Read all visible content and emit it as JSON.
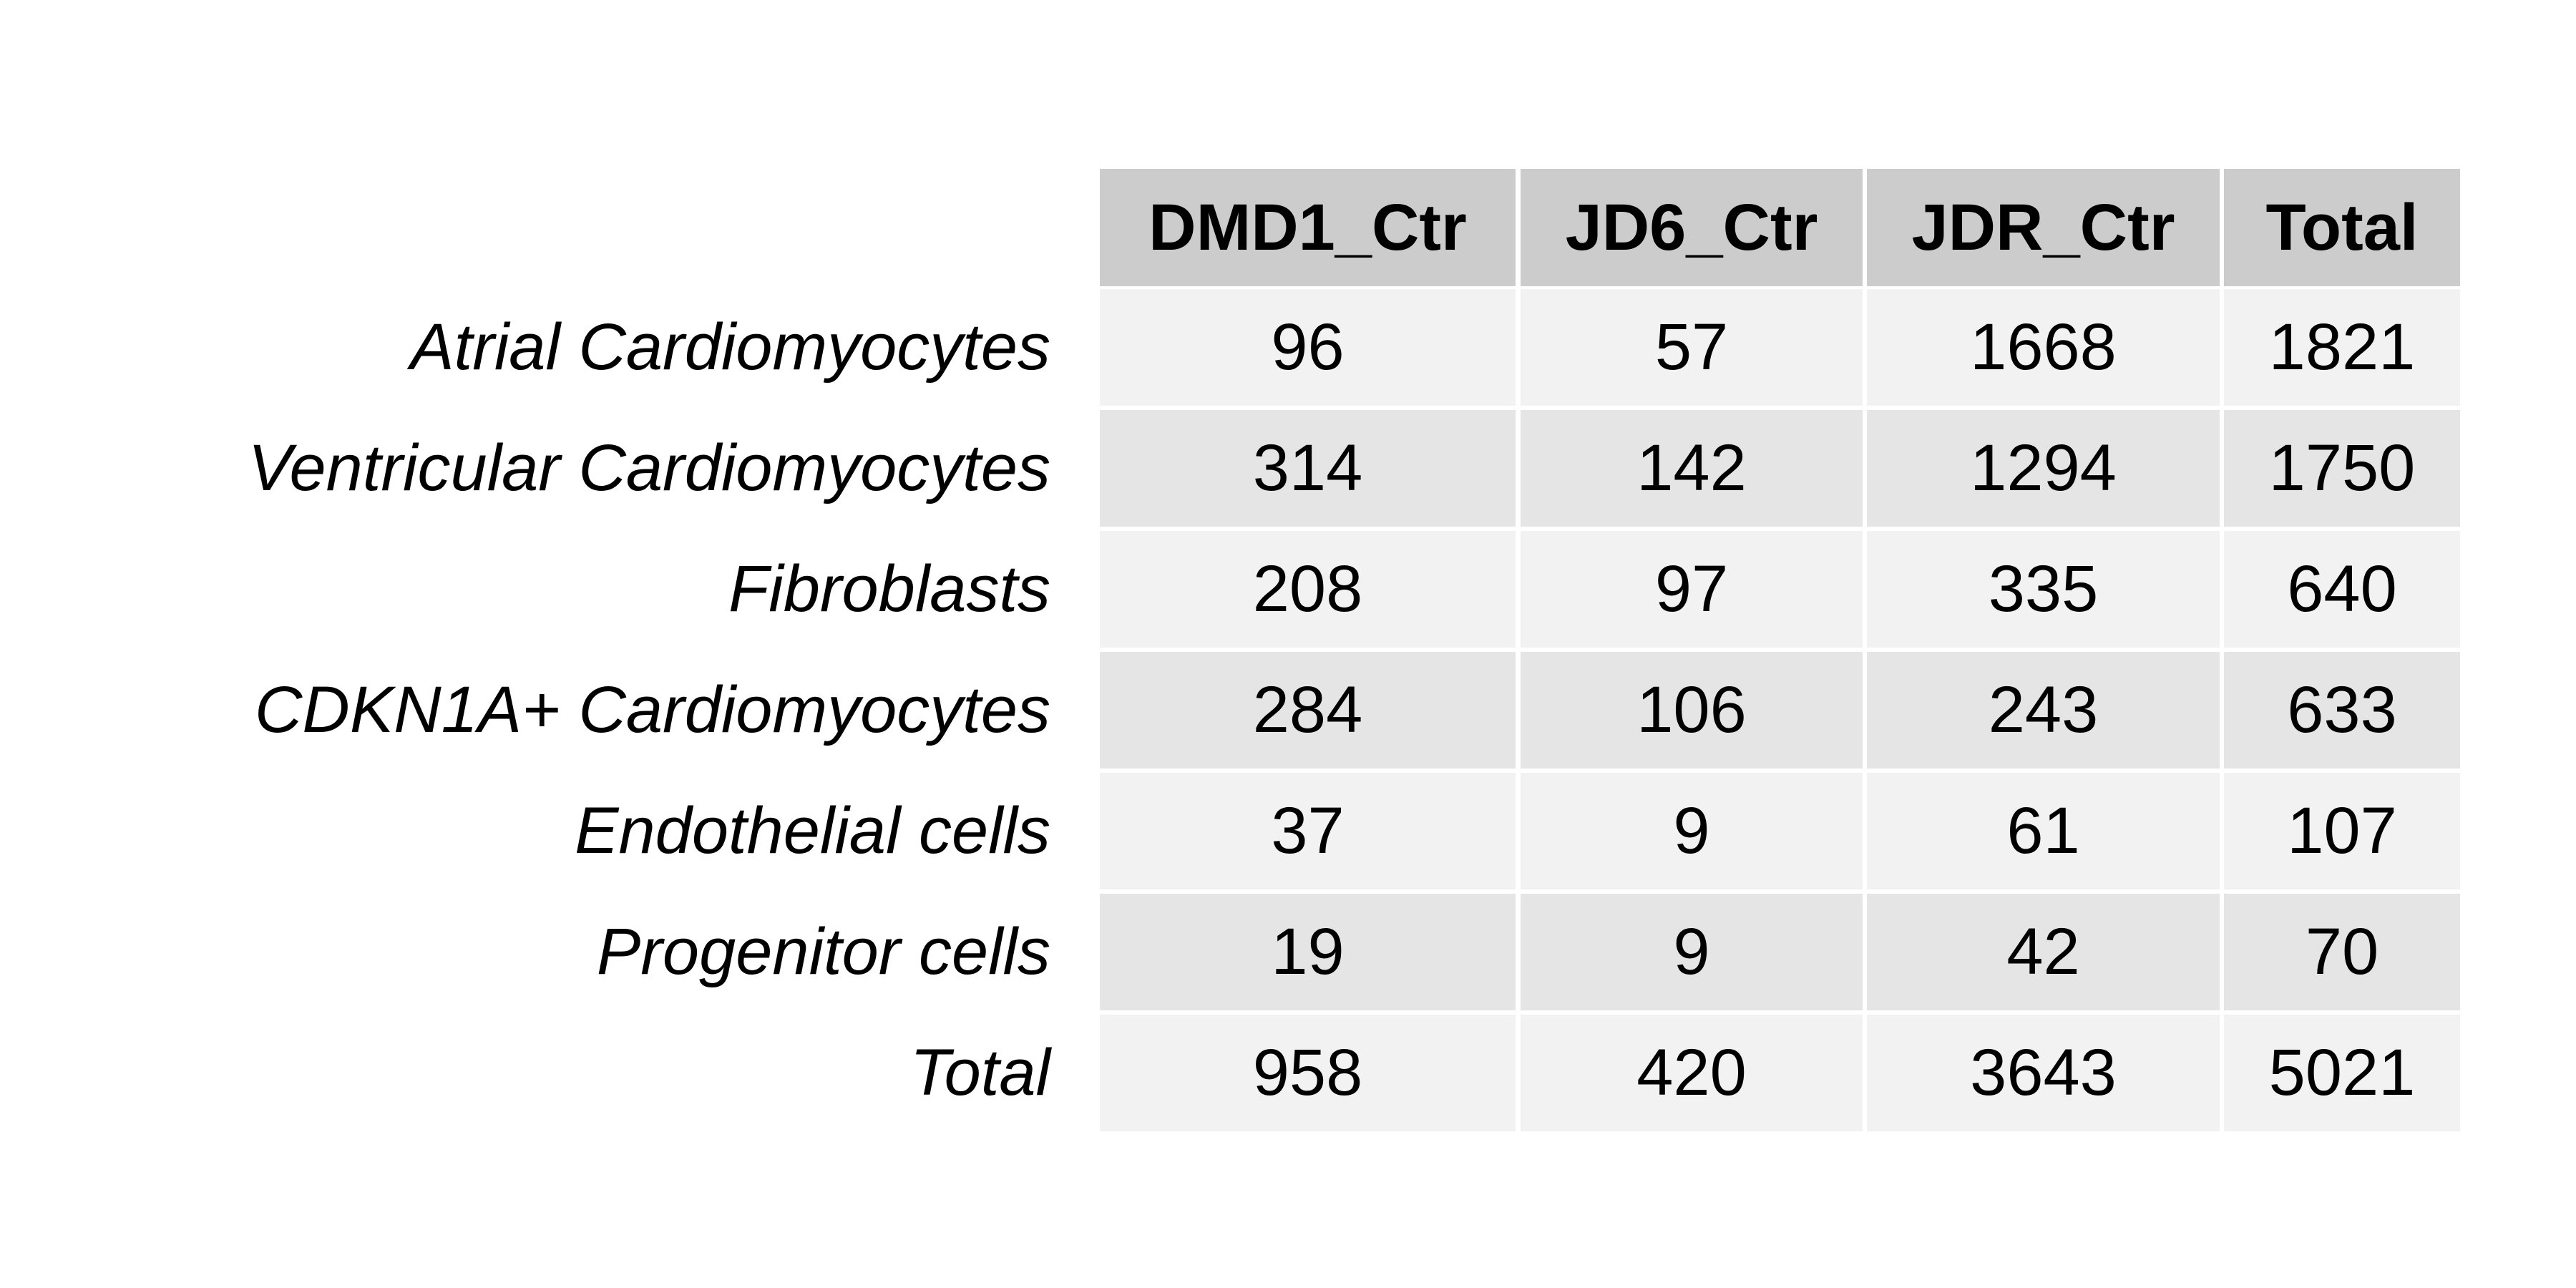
{
  "chart_data": {
    "type": "table",
    "columns": [
      "DMD1_Ctr",
      "JD6_Ctr",
      "JDR_Ctr",
      "Total"
    ],
    "rows": [
      {
        "label": "Atrial Cardiomyocytes",
        "values": [
          96,
          57,
          1668,
          1821
        ]
      },
      {
        "label": "Ventricular Cardiomyocytes",
        "values": [
          314,
          142,
          1294,
          1750
        ]
      },
      {
        "label": "Fibroblasts",
        "values": [
          208,
          97,
          335,
          640
        ]
      },
      {
        "label": "CDKN1A+ Cardiomyocytes",
        "values": [
          284,
          106,
          243,
          633
        ]
      },
      {
        "label": "Endothelial cells",
        "values": [
          37,
          9,
          61,
          107
        ]
      },
      {
        "label": "Progenitor cells",
        "values": [
          19,
          9,
          42,
          70
        ]
      },
      {
        "label": "Total",
        "values": [
          958,
          420,
          3643,
          5021
        ]
      }
    ],
    "colors": {
      "header_fill": "#cccccc",
      "row_fill_odd": "#f2f2f2",
      "row_fill_even": "#e5e5e5",
      "grid_line": "#ffffff",
      "text": "#000000"
    }
  }
}
